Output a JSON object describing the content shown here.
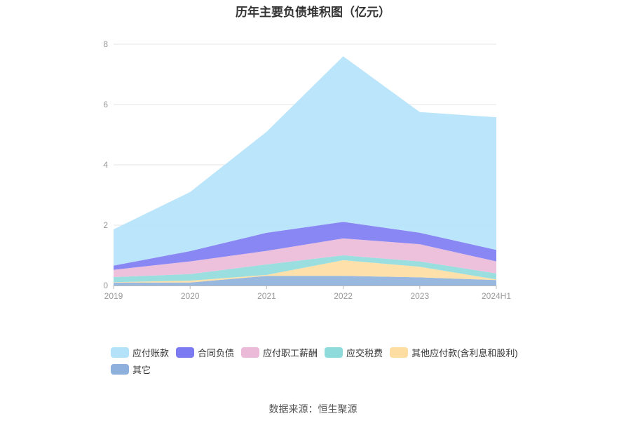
{
  "title": "历年主要负债堆积图（亿元）",
  "source": "数据来源：恒生聚源",
  "chart_data": {
    "type": "area",
    "stacked": true,
    "title": "历年主要负债堆积图（亿元）",
    "categories": [
      "2019",
      "2020",
      "2021",
      "2022",
      "2023",
      "2024H1"
    ],
    "ylim": [
      0,
      8
    ],
    "yticks": [
      "0",
      "2",
      "4",
      "6",
      "8"
    ],
    "grid": true,
    "legend_position": "bottom",
    "series": [
      {
        "name": "其它",
        "color": "#8eb0dc",
        "values": [
          0.1,
          0.1,
          0.32,
          0.32,
          0.27,
          0.18
        ]
      },
      {
        "name": "其他应付款(含利息和股利)",
        "color": "#fddda1",
        "values": [
          0.01,
          0.06,
          0.03,
          0.52,
          0.35,
          0.02
        ]
      },
      {
        "name": "应交税费",
        "color": "#8fdadb",
        "values": [
          0.17,
          0.22,
          0.35,
          0.16,
          0.18,
          0.2
        ]
      },
      {
        "name": "应付职工薪酬",
        "color": "#ebbad8",
        "values": [
          0.24,
          0.42,
          0.45,
          0.56,
          0.57,
          0.4
        ]
      },
      {
        "name": "合同负债",
        "color": "#7c7af2",
        "values": [
          0.14,
          0.34,
          0.6,
          0.55,
          0.38,
          0.38
        ]
      },
      {
        "name": "应付账款",
        "color": "#b4e2f9",
        "values": [
          1.2,
          1.96,
          3.35,
          5.49,
          4.0,
          4.4
        ]
      }
    ]
  }
}
